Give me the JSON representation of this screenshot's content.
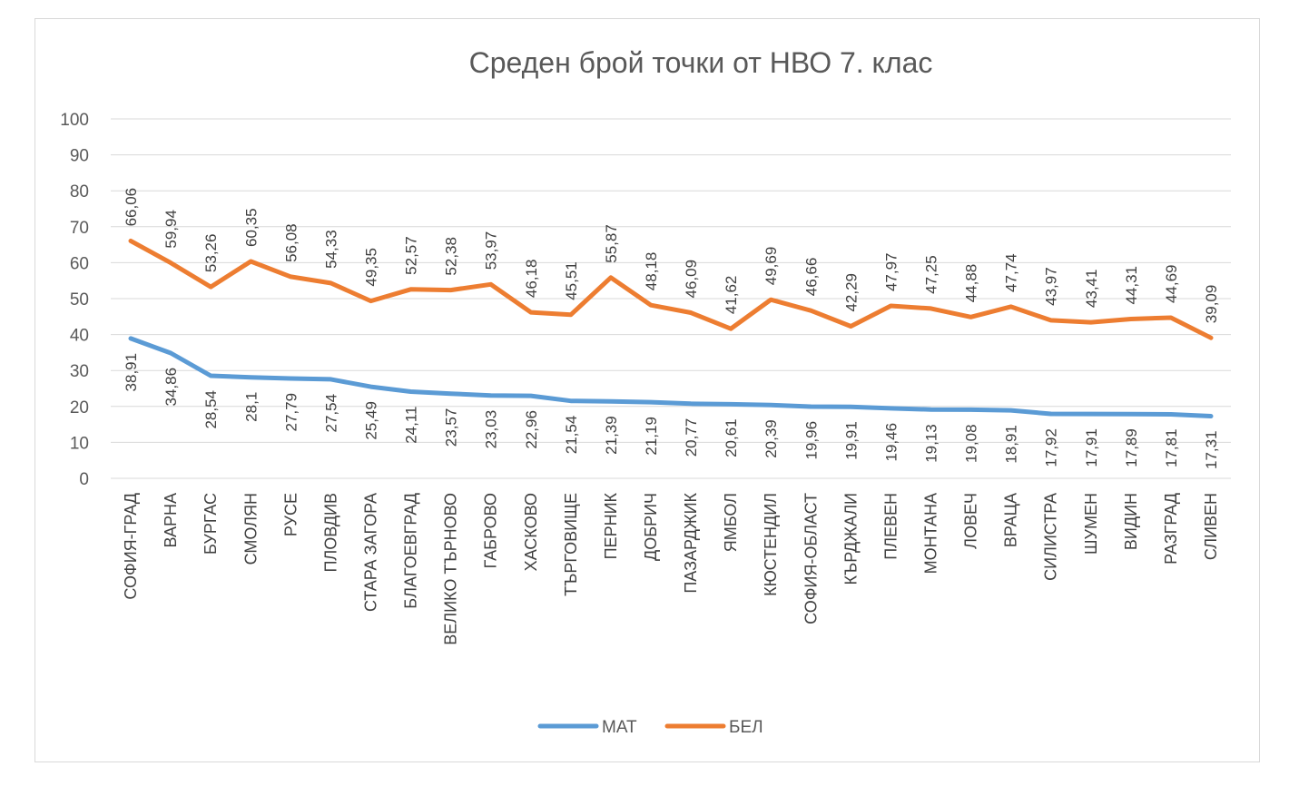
{
  "chart_data": {
    "type": "line",
    "title": "Среден брой точки от НВО 7. клас",
    "xlabel": "",
    "ylabel": "",
    "ylim": [
      0,
      100
    ],
    "yticks": [
      0,
      10,
      20,
      30,
      40,
      50,
      60,
      70,
      80,
      90,
      100
    ],
    "grid": true,
    "legend": "bottom",
    "categories": [
      "СОФИЯ-ГРАД",
      "ВАРНА",
      "БУРГАС",
      "СМОЛЯН",
      "РУСЕ",
      "ПЛОВДИВ",
      "СТАРА ЗАГОРА",
      "БЛАГОЕВГРАД",
      "ВЕЛИКО ТЪРНОВО",
      "ГАБРОВО",
      "ХАСКОВО",
      "ТЪРГОВИЩЕ",
      "ПЕРНИК",
      "ДОБРИЧ",
      "ПАЗАРДЖИК",
      "ЯМБОЛ",
      "КЮСТЕНДИЛ",
      "СОФИЯ-ОБЛАСТ",
      "КЪРДЖАЛИ",
      "ПЛЕВЕН",
      "МОНТАНА",
      "ЛОВЕЧ",
      "ВРАЦА",
      "СИЛИСТРА",
      "ШУМЕН",
      "ВИДИН",
      "РАЗГРАД",
      "СЛИВЕН"
    ],
    "series": [
      {
        "name": "МАТ",
        "color": "#5b9bd5",
        "values": [
          38.91,
          34.86,
          28.54,
          28.1,
          27.79,
          27.54,
          25.49,
          24.11,
          23.57,
          23.03,
          22.96,
          21.54,
          21.39,
          21.19,
          20.77,
          20.61,
          20.39,
          19.96,
          19.91,
          19.46,
          19.13,
          19.08,
          18.91,
          17.92,
          17.91,
          17.89,
          17.81,
          17.31
        ],
        "labels": [
          "38,91",
          "34,86",
          "28,54",
          "28,1",
          "27,79",
          "27,54",
          "25,49",
          "24,11",
          "23,57",
          "23,03",
          "22,96",
          "21,54",
          "21,39",
          "21,19",
          "20,77",
          "20,61",
          "20,39",
          "19,96",
          "19,91",
          "19,46",
          "19,13",
          "19,08",
          "18,91",
          "17,92",
          "17,91",
          "17,89",
          "17,81",
          "17,31"
        ]
      },
      {
        "name": "БЕЛ",
        "color": "#ed7d31",
        "values": [
          66.06,
          59.94,
          53.26,
          60.35,
          56.08,
          54.33,
          49.35,
          52.57,
          52.38,
          53.97,
          46.18,
          45.51,
          55.87,
          48.18,
          46.09,
          41.62,
          49.69,
          46.66,
          42.29,
          47.97,
          47.25,
          44.88,
          47.74,
          43.97,
          43.41,
          44.31,
          44.69,
          39.09
        ],
        "labels": [
          "66,06",
          "59,94",
          "53,26",
          "60,35",
          "56,08",
          "54,33",
          "49,35",
          "52,57",
          "52,38",
          "53,97",
          "46,18",
          "45,51",
          "55,87",
          "48,18",
          "46,09",
          "41,62",
          "49,69",
          "46,66",
          "42,29",
          "47,97",
          "47,25",
          "44,88",
          "47,74",
          "43,97",
          "43,41",
          "44,31",
          "44,69",
          "39,09"
        ]
      }
    ]
  }
}
